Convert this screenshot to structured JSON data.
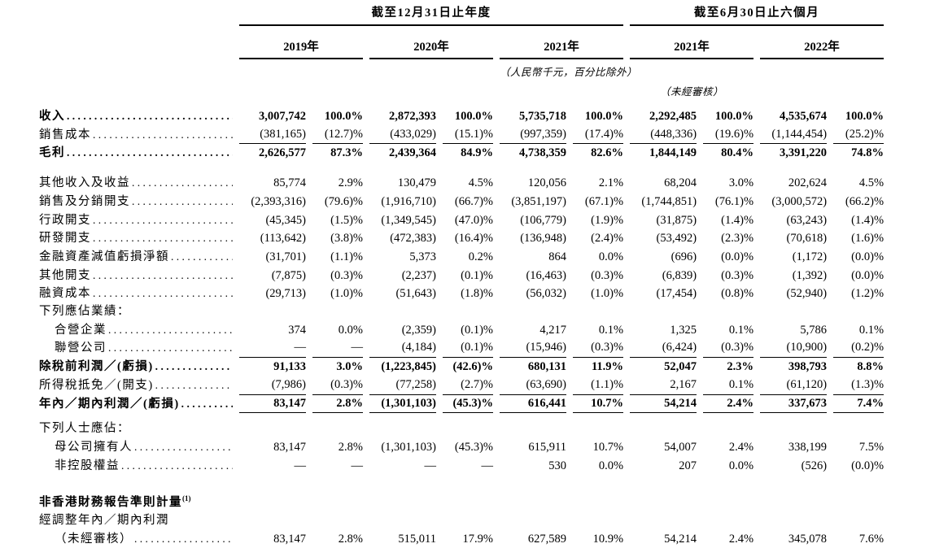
{
  "header": {
    "annual_title": "截至12月31日止年度",
    "interim_title": "截至6月30日止六個月",
    "years": [
      "2019年",
      "2020年",
      "2021年",
      "2021年",
      "2022年"
    ],
    "currency_note": "（人民幣千元，百分比除外）",
    "unaudited_note": "（未經審核）"
  },
  "table": {
    "sections": [
      {
        "rows": [
          {
            "label": "收入",
            "bold": true,
            "leaders": true,
            "values": [
              "3,007,742",
              "100.0%",
              "2,872,393",
              "100.0%",
              "5,735,718",
              "100.0%",
              "2,292,485",
              "100.0%",
              "4,535,674",
              "100.0%"
            ]
          },
          {
            "label": "銷售成本",
            "leaders": true,
            "underline": true,
            "values": [
              "(381,165)",
              "(12.7)%",
              "(433,029)",
              "(15.1)%",
              "(997,359)",
              "(17.4)%",
              "(448,336)",
              "(19.6)%",
              "(1,144,454)",
              "(25.2)%"
            ]
          },
          {
            "label": "毛利",
            "bold": true,
            "leaders": true,
            "values": [
              "2,626,577",
              "87.3%",
              "2,439,364",
              "84.9%",
              "4,738,359",
              "82.6%",
              "1,844,149",
              "80.4%",
              "3,391,220",
              "74.8%"
            ]
          }
        ]
      },
      {
        "rows": [
          {
            "label": "其他收入及收益",
            "leaders": true,
            "values": [
              "85,774",
              "2.9%",
              "130,479",
              "4.5%",
              "120,056",
              "2.1%",
              "68,204",
              "3.0%",
              "202,624",
              "4.5%"
            ]
          },
          {
            "label": "銷售及分銷開支",
            "leaders": true,
            "values": [
              "(2,393,316)",
              "(79.6)%",
              "(1,916,710)",
              "(66.7)%",
              "(3,851,197)",
              "(67.1)%",
              "(1,744,851)",
              "(76.1)%",
              "(3,000,572)",
              "(66.2)%"
            ]
          },
          {
            "label": "行政開支",
            "leaders": true,
            "values": [
              "(45,345)",
              "(1.5)%",
              "(1,349,545)",
              "(47.0)%",
              "(106,779)",
              "(1.9)%",
              "(31,875)",
              "(1.4)%",
              "(63,243)",
              "(1.4)%"
            ]
          },
          {
            "label": "研發開支",
            "leaders": true,
            "values": [
              "(113,642)",
              "(3.8)%",
              "(472,383)",
              "(16.4)%",
              "(136,948)",
              "(2.4)%",
              "(53,492)",
              "(2.3)%",
              "(70,618)",
              "(1.6)%"
            ]
          },
          {
            "label": "金融資產減值虧損淨額",
            "leaders": true,
            "values": [
              "(31,701)",
              "(1.1)%",
              "5,373",
              "0.2%",
              "864",
              "0.0%",
              "(696)",
              "(0.0)%",
              "(1,172)",
              "(0.0)%"
            ]
          },
          {
            "label": "其他開支",
            "leaders": true,
            "values": [
              "(7,875)",
              "(0.3)%",
              "(2,237)",
              "(0.1)%",
              "(16,463)",
              "(0.3)%",
              "(6,839)",
              "(0.3)%",
              "(1,392)",
              "(0.0)%"
            ]
          },
          {
            "label": "融資成本",
            "leaders": true,
            "values": [
              "(29,713)",
              "(1.0)%",
              "(51,643)",
              "(1.8)%",
              "(56,032)",
              "(1.0)%",
              "(17,454)",
              "(0.8)%",
              "(52,940)",
              "(1.2)%"
            ]
          },
          {
            "label": "下列應佔業績："
          },
          {
            "label": "合營企業",
            "indent": true,
            "leaders": true,
            "values": [
              "374",
              "0.0%",
              "(2,359)",
              "(0.1)%",
              "4,217",
              "0.1%",
              "1,325",
              "0.1%",
              "5,786",
              "0.1%"
            ]
          },
          {
            "label": "聯營公司",
            "indent": true,
            "leaders": true,
            "underline": true,
            "values": [
              "—",
              "—",
              "(4,184)",
              "(0.1)%",
              "(15,946)",
              "(0.3)%",
              "(6,424)",
              "(0.3)%",
              "(10,900)",
              "(0.2)%"
            ]
          },
          {
            "label": "除稅前利潤／(虧損)",
            "bold": true,
            "leaders": true,
            "values": [
              "91,133",
              "3.0%",
              "(1,223,845)",
              "(42.6)%",
              "680,131",
              "11.9%",
              "52,047",
              "2.3%",
              "398,793",
              "8.8%"
            ]
          },
          {
            "label": "所得稅抵免／(開支)",
            "leaders": true,
            "underline": true,
            "values": [
              "(7,986)",
              "(0.3)%",
              "(77,258)",
              "(2.7)%",
              "(63,690)",
              "(1.1)%",
              "2,167",
              "0.1%",
              "(61,120)",
              "(1.3)%"
            ]
          },
          {
            "label": "年內／期內利潤／(虧損)",
            "bold": true,
            "leaders": true,
            "underline": true,
            "values": [
              "83,147",
              "2.8%",
              "(1,301,103)",
              "(45.3)%",
              "616,441",
              "10.7%",
              "54,214",
              "2.4%",
              "337,673",
              "7.4%"
            ]
          }
        ]
      },
      {
        "rows": [
          {
            "label": "下列人士應佔："
          },
          {
            "label": "母公司擁有人",
            "indent": true,
            "leaders": true,
            "values": [
              "83,147",
              "2.8%",
              "(1,301,103)",
              "(45.3)%",
              "615,911",
              "10.7%",
              "54,007",
              "2.4%",
              "338,199",
              "7.5%"
            ]
          },
          {
            "label": "非控股權益",
            "indent": true,
            "leaders": true,
            "values": [
              "—",
              "—",
              "—",
              "—",
              "530",
              "0.0%",
              "207",
              "0.0%",
              "(526)",
              "(0.0)%"
            ]
          }
        ]
      },
      {
        "rows": [
          {
            "label": "非香港財務報告準則計量",
            "bold": true,
            "sup": "(1)"
          },
          {
            "label": "經調整年內／期內利潤"
          },
          {
            "label": "（未經審核）",
            "indent": true,
            "leaders": true,
            "values": [
              "83,147",
              "2.8%",
              "515,011",
              "17.9%",
              "627,589",
              "10.9%",
              "54,214",
              "2.4%",
              "345,078",
              "7.6%"
            ]
          }
        ]
      }
    ]
  }
}
